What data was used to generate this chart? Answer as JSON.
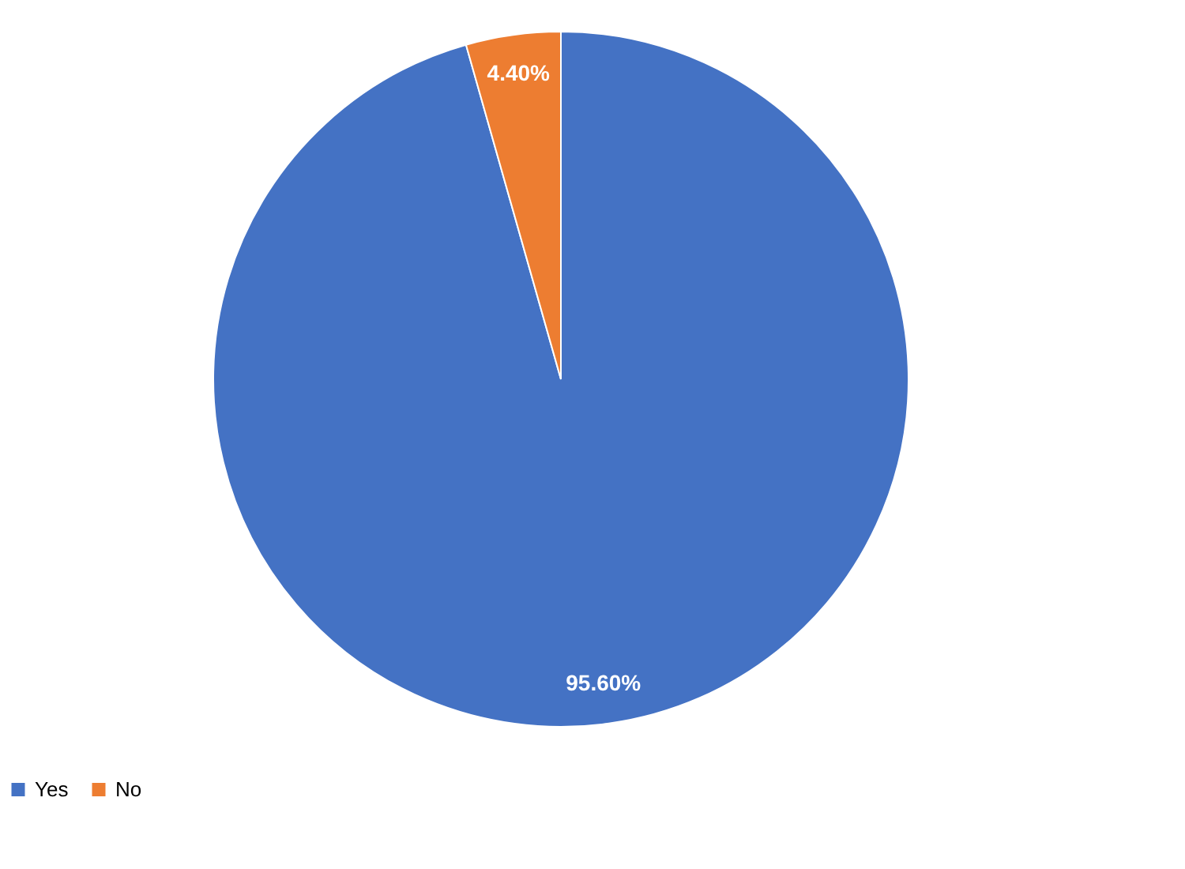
{
  "chart_data": {
    "type": "pie",
    "categories": [
      "Yes",
      "No"
    ],
    "values": [
      95.6,
      4.4
    ],
    "colors": [
      "#4472c4",
      "#ed7d31"
    ],
    "value_labels": [
      "95.60%",
      "4.40%"
    ],
    "legend": "bottom"
  }
}
